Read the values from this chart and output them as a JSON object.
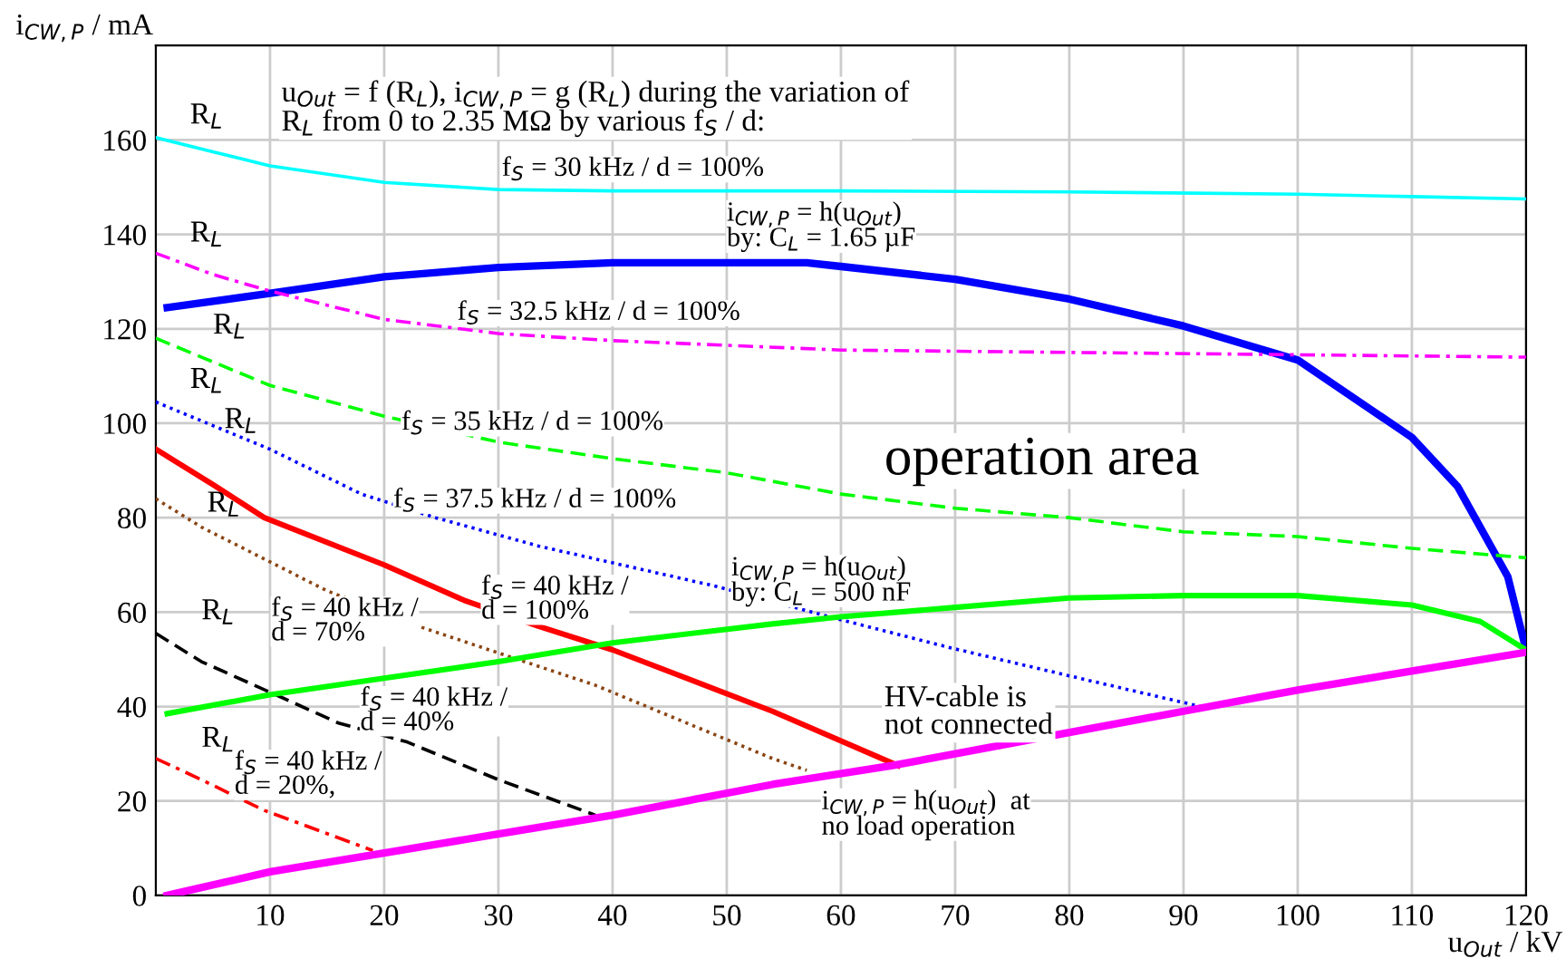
{
  "chart_data": {
    "type": "line",
    "xlabel": "u$_{Out}$ / kV",
    "ylabel": "i$_{CW,P}$ / mA",
    "xlim": [
      0,
      120
    ],
    "ylim": [
      0,
      180
    ],
    "xticks": [
      10,
      20,
      30,
      40,
      50,
      60,
      70,
      80,
      90,
      100,
      110,
      120
    ],
    "yticks": [
      0,
      20,
      40,
      60,
      80,
      100,
      120,
      140,
      160
    ],
    "grid": true,
    "legend": false,
    "annotations": [
      "u$_{Out}$ = f (R$_{L}$), i$_{CW,P}$ = g (R$_{L}$) during the variation of\nR$_{L}$ from 0 to 2.35 MΩ by various f$_{S}$ / d:",
      "operation area",
      "HV-cable is\nnot connected",
      "R$_{L}$",
      "R$_{L}$",
      "R$_{L}$",
      "R$_{L}$",
      "R$_{L}$",
      "R$_{L}$",
      "R$_{L}$",
      "R$_{L}$"
    ],
    "series": [
      {
        "name": "f$_{S}$ = 30 kHz / d = 100%",
        "color": "#00ffff",
        "line_style": "solid",
        "x": [
          0,
          5,
          10,
          20,
          30,
          40,
          60,
          80,
          100,
          110,
          120
        ],
        "values": [
          160.5,
          157.5,
          154.5,
          151,
          149.5,
          149.2,
          149.2,
          149,
          148.5,
          148,
          147.5
        ]
      },
      {
        "name": "i$_{CW,P}$ = h(u$_{Out}$)\nby: C$_{L}$ = 1.65 µF",
        "color": "#0000ff",
        "line_style": "solid",
        "x": [
          1,
          10,
          20,
          30,
          40,
          50,
          57,
          60,
          70,
          80,
          90,
          100,
          110,
          114,
          118.4,
          120
        ],
        "values": [
          124.5,
          127.5,
          131,
          133,
          134,
          134,
          134,
          133.2,
          130.5,
          126.3,
          120.6,
          113.4,
          97,
          86.6,
          67.5,
          52
        ]
      },
      {
        "name": "f$_{S}$ = 32.5 kHz / d = 100%",
        "color": "#ff00ff",
        "line_style": "dashdot",
        "x": [
          0,
          5,
          10,
          20,
          30,
          40,
          50,
          60,
          80,
          100,
          120
        ],
        "values": [
          136,
          131.5,
          128,
          122,
          119,
          117.5,
          116.5,
          115.5,
          115,
          114.5,
          114
        ]
      },
      {
        "name": "f$_{S}$ = 35 kHz / d = 100%",
        "color": "#00ff00",
        "line_style": "dashed",
        "x": [
          0,
          5,
          10,
          20,
          30,
          40,
          50,
          60,
          70,
          80,
          90,
          100,
          110,
          120
        ],
        "values": [
          118,
          113,
          108,
          101.5,
          96,
          92.5,
          89.5,
          85,
          82,
          80,
          77,
          76,
          73.5,
          71.5
        ]
      },
      {
        "name": "f$_{S}$ = 37.5 kHz / d = 100%",
        "color": "#0000ff",
        "line_style": "dotted",
        "x": [
          0,
          5,
          10,
          18,
          24.5,
          33.5,
          49,
          59,
          69.5,
          80,
          91.5
        ],
        "values": [
          104.5,
          99.5,
          94.5,
          85,
          80,
          74,
          65.5,
          59,
          52.5,
          46.5,
          40
        ]
      },
      {
        "name": "f$_{S}$ = 40 kHz /\nd = 100%",
        "color": "#ff0000",
        "line_style": "solid",
        "x": [
          0,
          5,
          9.5,
          20,
          27,
          33.5,
          40,
          54,
          65
        ],
        "values": [
          94.5,
          87,
          80,
          70,
          62.5,
          57,
          52,
          39,
          27.5
        ]
      },
      {
        "name": "f$_{S}$ = 40 kHz /\nd = 70%",
        "color": "#8b4513",
        "line_style": "dotted",
        "x": [
          0,
          4,
          15,
          23,
          38.5,
          54,
          57
        ],
        "values": [
          84,
          78,
          64.5,
          57,
          44.5,
          29,
          26.5
        ]
      },
      {
        "name": "f$_{S}$ = 40 kHz /\nd = 40%",
        "color": "#000000",
        "line_style": "dashed",
        "x": [
          0,
          4,
          10.5,
          16,
          22,
          30,
          38.5
        ],
        "values": [
          55.5,
          49.5,
          42.5,
          36.5,
          32.5,
          24.5,
          17
        ]
      },
      {
        "name": "f$_{S}$ = 40 kHz /\nd = 20%,",
        "color": "#ff0000",
        "line_style": "dashdot",
        "x": [
          0,
          4,
          9.5,
          19
        ],
        "values": [
          29,
          24.5,
          18,
          9.5
        ]
      },
      {
        "name": "i$_{CW,P}$ = h(u$_{Out}$)\nby: C$_{L}$ = 500 nF",
        "color": "#00ff00",
        "line_style": "solid",
        "x": [
          1,
          10,
          20,
          30,
          40,
          54,
          60,
          70,
          80,
          90,
          100,
          110,
          116,
          120
        ],
        "values": [
          38.5,
          42.5,
          46,
          49.5,
          53.5,
          57.5,
          59,
          61,
          63,
          63.5,
          63.5,
          61.5,
          58,
          52
        ]
      },
      {
        "name": "i$_{CW,P}$ = h(u$_{Out}$)  at\nno load operation",
        "color": "#ff00ff",
        "line_style": "solid",
        "x": [
          1,
          10,
          20,
          30,
          40,
          54,
          64.5,
          80,
          90,
          100,
          110,
          120
        ],
        "values": [
          0,
          5,
          9,
          13,
          17,
          23.5,
          27.5,
          34.5,
          39,
          43.5,
          47.5,
          51.5
        ]
      }
    ]
  }
}
